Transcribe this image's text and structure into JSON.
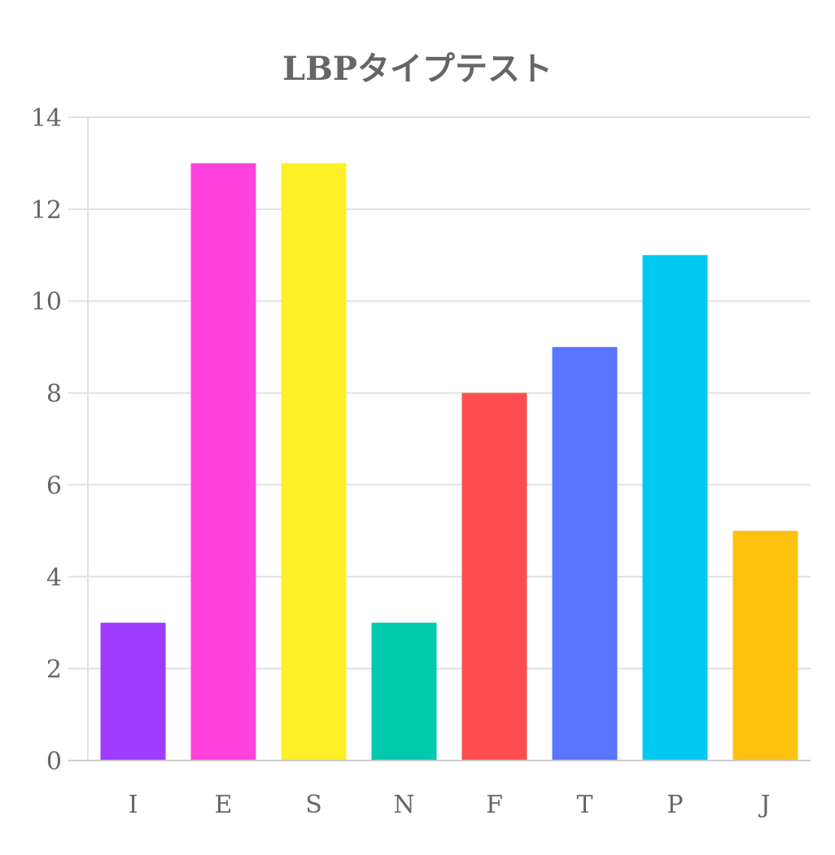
{
  "chart_data": {
    "type": "bar",
    "title": "LBPタイプテスト",
    "xlabel": "",
    "ylabel": "",
    "categories": [
      "I",
      "E",
      "S",
      "N",
      "F",
      "T",
      "P",
      "J"
    ],
    "values": [
      3,
      13,
      13,
      3,
      8,
      9,
      11,
      5
    ],
    "colors": [
      "#9f3cff",
      "#ff42dd",
      "#fef026",
      "#00c9ad",
      "#ff4d4f",
      "#5a75ff",
      "#00c9f2",
      "#fec110"
    ],
    "ylim": [
      0,
      14
    ],
    "yticks": [
      0,
      2,
      4,
      6,
      8,
      10,
      12,
      14
    ],
    "grid": true,
    "legend": "none"
  }
}
